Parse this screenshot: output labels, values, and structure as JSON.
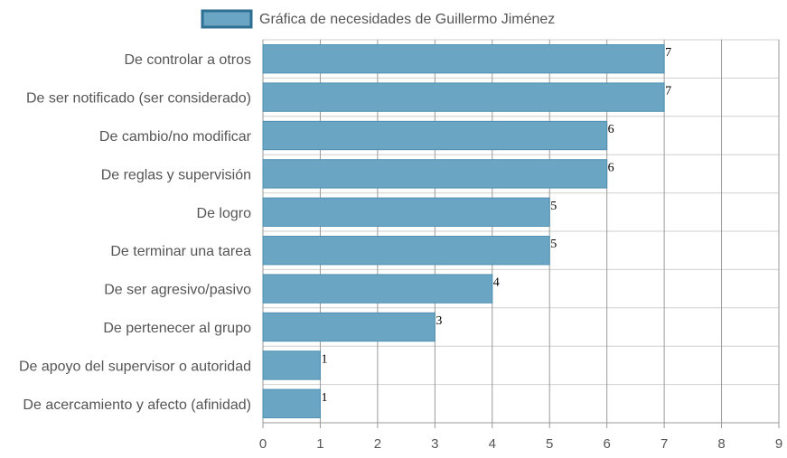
{
  "chart_data": {
    "type": "bar",
    "orientation": "horizontal",
    "legend": {
      "label": "Gráfica de necesidades de Guillermo Jiménez",
      "placement": "top-center"
    },
    "categories": [
      "De controlar a otros",
      "De ser notificado (ser considerado)",
      "De cambio/no modificar",
      "De reglas y supervisión",
      "De logro",
      "De terminar una tarea",
      "De ser agresivo/pasivo",
      "De pertenecer al grupo",
      "De apoyo del supervisor o autoridad",
      "De acercamiento y afecto (afinidad)"
    ],
    "series": [
      {
        "name": "Gráfica de necesidades de Guillermo Jiménez",
        "values": [
          7,
          7,
          6,
          6,
          5,
          5,
          4,
          3,
          1,
          1
        ]
      }
    ],
    "xlim": [
      0,
      9
    ],
    "x_ticks": [
      "0",
      "1",
      "2",
      "3",
      "4",
      "5",
      "6",
      "7",
      "8",
      "9"
    ],
    "data_labels": true,
    "grid": true,
    "colors": {
      "bar_fill": "#6aa6c4",
      "bar_stroke": "#4f8fb0",
      "legend_swatch_border": "#2e6f93",
      "grid": "#cfcfcf",
      "vgrid": "#9a9a9a"
    }
  }
}
